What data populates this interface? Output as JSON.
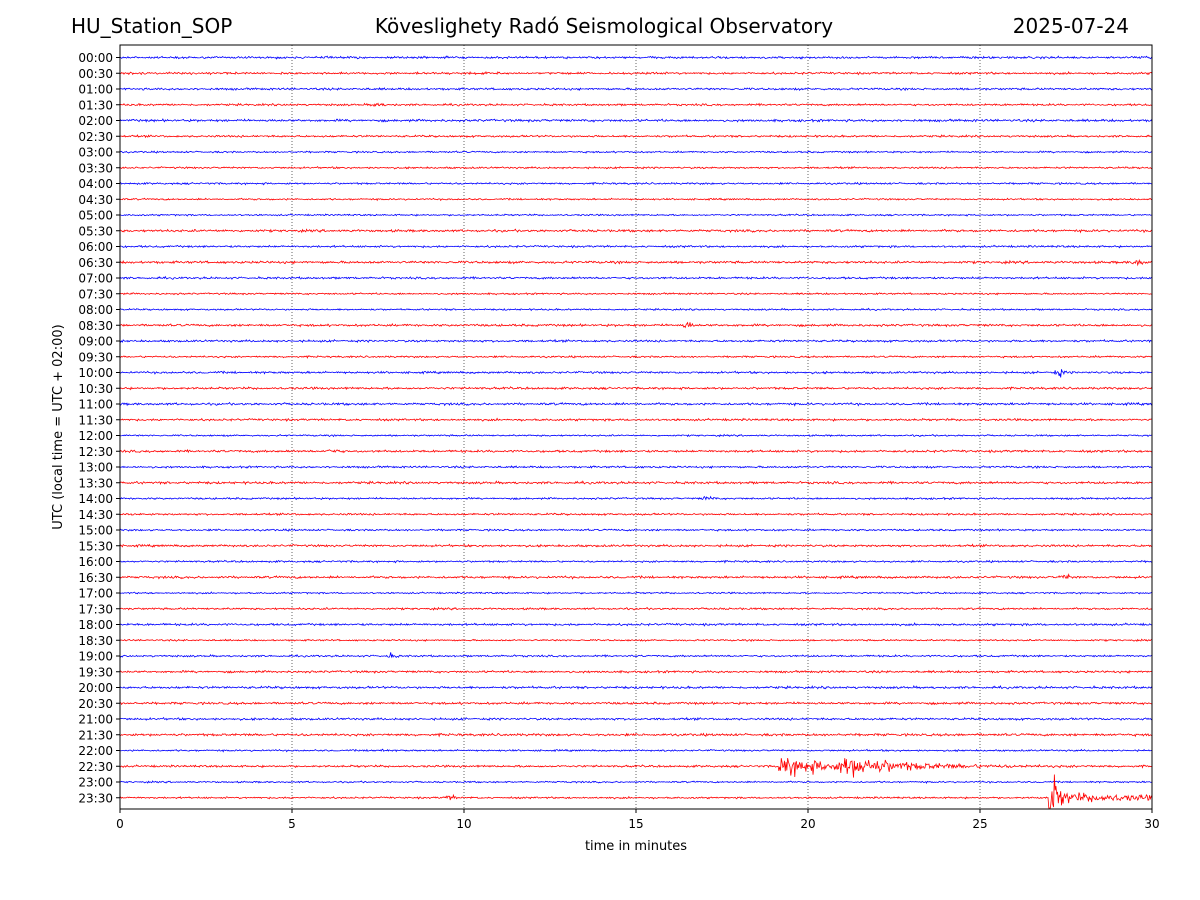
{
  "header": {
    "station": "HU_Station_SOP",
    "observatory": "Köveslighety Radó Seismological Observatory",
    "date": "2025-07-24"
  },
  "chart_data": {
    "type": "line",
    "title": "Köveslighety Radó Seismological Observatory",
    "xlabel": "time in minutes",
    "ylabel": "UTC (local time = UTC + 02:00)",
    "xlim": [
      0,
      30
    ],
    "x_ticks": [
      0,
      5,
      10,
      15,
      20,
      25,
      30
    ],
    "x_grid": "dotted vertical lines at each x tick",
    "y_ticks": [
      "00:00",
      "00:30",
      "01:00",
      "01:30",
      "02:00",
      "02:30",
      "03:00",
      "03:30",
      "04:00",
      "04:30",
      "05:00",
      "05:30",
      "06:00",
      "06:30",
      "07:00",
      "07:30",
      "08:00",
      "08:30",
      "09:00",
      "09:30",
      "10:00",
      "10:30",
      "11:00",
      "11:30",
      "12:00",
      "12:30",
      "13:00",
      "13:30",
      "14:00",
      "14:30",
      "15:00",
      "15:30",
      "16:00",
      "16:30",
      "17:00",
      "17:30",
      "18:00",
      "18:30",
      "19:00",
      "19:30",
      "20:00",
      "20:30",
      "21:00",
      "21:30",
      "22:00",
      "22:30",
      "23:00",
      "23:30"
    ],
    "trace_colors": [
      "#0000ff",
      "#ff0000"
    ],
    "color_pattern": "alternating per row, starting blue at 00:00",
    "events": [
      {
        "row": "01:30",
        "minute": 7.5,
        "amplitude": 3
      },
      {
        "row": "06:30",
        "minute": 29.6,
        "amplitude": 4
      },
      {
        "row": "08:30",
        "minute": 16.5,
        "amplitude": 4
      },
      {
        "row": "10:00",
        "minute": 27.3,
        "amplitude": 5
      },
      {
        "row": "12:30",
        "minute": 6.2,
        "amplitude": 3
      },
      {
        "row": "14:00",
        "minute": 17.1,
        "amplitude": 3
      },
      {
        "row": "16:30",
        "minute": 27.5,
        "amplitude": 3
      },
      {
        "row": "19:00",
        "minute": 7.9,
        "amplitude": 3
      },
      {
        "row": "22:00",
        "minute": 7.5,
        "amplitude": 3
      },
      {
        "row": "22:30",
        "minute": 19.2,
        "amplitude": 14
      },
      {
        "row": "22:30",
        "minute": 21.0,
        "amplitude": 12
      },
      {
        "row": "23:30",
        "minute": 9.6,
        "amplitude": 3
      },
      {
        "row": "23:30",
        "minute": 27.0,
        "amplitude": 60
      }
    ]
  }
}
